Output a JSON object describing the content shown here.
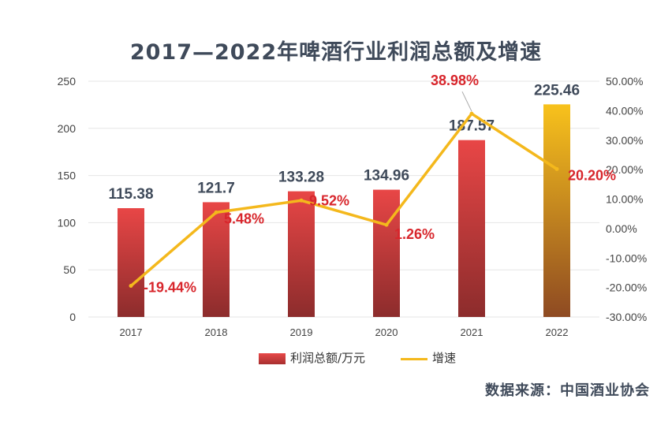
{
  "chart_data": {
    "type": "bar+line",
    "title": "2017—2022年啤酒行业利润总额及增速",
    "categories": [
      "2017",
      "2018",
      "2019",
      "2020",
      "2021",
      "2022"
    ],
    "series": [
      {
        "name": "利润总额/万元",
        "type": "bar",
        "axis": "left",
        "values": [
          115.38,
          121.7,
          133.28,
          134.96,
          187.57,
          225.46
        ],
        "labels": [
          "115.38",
          "121.7",
          "133.28",
          "134.96",
          "187.57",
          "225.46"
        ]
      },
      {
        "name": "增速",
        "type": "line",
        "axis": "right",
        "values": [
          -19.44,
          5.48,
          9.52,
          1.26,
          38.98,
          20.2
        ],
        "labels": [
          "-19.44%",
          "5.48%",
          "9.52%",
          "1.26%",
          "38.98%",
          "20.20%"
        ]
      }
    ],
    "left_axis": {
      "ylim": [
        0,
        250
      ],
      "ticks": [
        "0",
        "50",
        "100",
        "150",
        "200",
        "250"
      ]
    },
    "right_axis": {
      "ylim": [
        -30,
        50
      ],
      "ticks": [
        "-30.00%",
        "-20.00%",
        "-10.00%",
        "0.00%",
        "10.00%",
        "20.00%",
        "30.00%",
        "40.00%",
        "50.00%"
      ]
    },
    "colors": {
      "bar_top": "#e84646",
      "bar_bottom": "#8c2c2c",
      "bar_2022_top": "#f8c21c",
      "bar_2022_bottom": "#8e4a22",
      "line": "#f4b81c",
      "bar_label": "#3f4a5a",
      "rate_label": "#d8262c",
      "grid": "#e6e6e6"
    },
    "legend": {
      "bar": "利润总额/万元",
      "line": "增速",
      "position": "bottom"
    },
    "source": "数据来源：中国酒业协会"
  }
}
